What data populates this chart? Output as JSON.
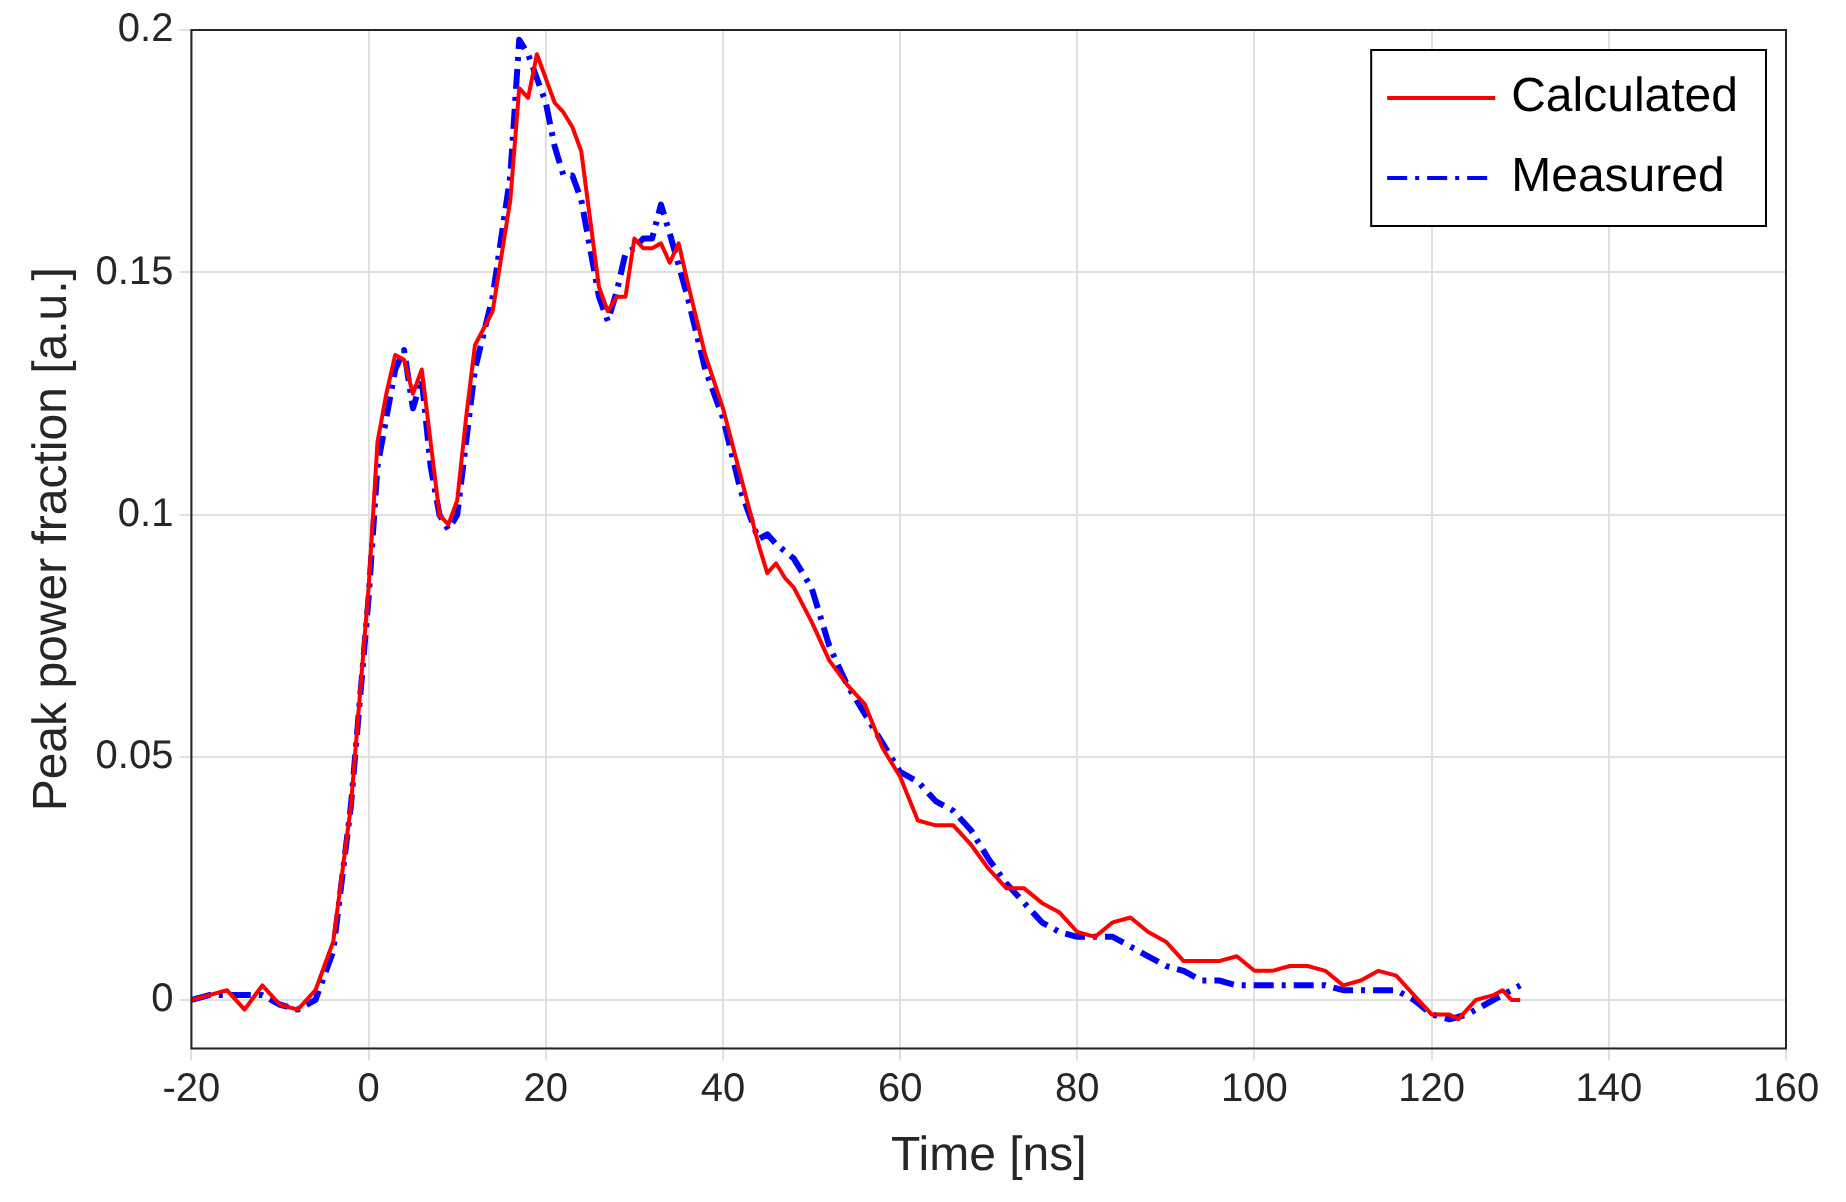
{
  "chart_data": {
    "type": "line",
    "xlabel": "Time [ns]",
    "ylabel": "Peak power fraction [a.u.]",
    "xlim": [
      -20,
      160
    ],
    "xticks": [
      -20,
      0,
      20,
      40,
      60,
      80,
      100,
      120,
      140,
      160
    ],
    "ylim": [
      -0.01,
      0.2
    ],
    "yticks": [
      0,
      0.05,
      0.1,
      0.15,
      0.2
    ],
    "grid": true,
    "legend": "top right",
    "marker": "none",
    "series": [
      {
        "name": "Calculated",
        "color": "#ff0000",
        "line_style": "solid",
        "x": [
          -20,
          -18,
          -16,
          -14,
          -12,
          -10,
          -8,
          -6,
          -4,
          -2,
          0,
          1,
          2,
          3,
          4,
          5,
          6,
          7,
          8,
          9,
          10,
          11,
          12,
          14,
          16,
          17,
          18,
          19,
          20,
          21,
          22,
          23,
          24,
          25,
          26,
          27,
          28,
          29,
          30,
          31,
          32,
          33,
          34,
          35,
          36,
          38,
          40,
          42,
          44,
          45,
          46,
          47,
          48,
          50,
          52,
          54,
          56,
          58,
          60,
          62,
          64,
          66,
          68,
          70,
          72,
          74,
          76,
          78,
          80,
          82,
          84,
          86,
          88,
          90,
          92,
          94,
          96,
          98,
          100,
          102,
          104,
          106,
          108,
          110,
          112,
          114,
          116,
          118,
          120,
          122,
          123,
          125,
          127,
          128,
          129,
          130
        ],
        "values": [
          0,
          0.001,
          0.002,
          -0.002,
          0.003,
          -0.001,
          -0.002,
          0.002,
          0.012,
          0.04,
          0.085,
          0.115,
          0.125,
          0.133,
          0.132,
          0.125,
          0.13,
          0.115,
          0.1,
          0.098,
          0.103,
          0.12,
          0.135,
          0.142,
          0.165,
          0.188,
          0.186,
          0.195,
          0.19,
          0.185,
          0.183,
          0.18,
          0.175,
          0.161,
          0.147,
          0.142,
          0.145,
          0.145,
          0.157,
          0.155,
          0.155,
          0.156,
          0.152,
          0.156,
          0.148,
          0.133,
          0.122,
          0.108,
          0.094,
          0.088,
          0.09,
          0.087,
          0.085,
          0.078,
          0.07,
          0.065,
          0.061,
          0.052,
          0.046,
          0.037,
          0.036,
          0.036,
          0.032,
          0.027,
          0.023,
          0.023,
          0.02,
          0.018,
          0.014,
          0.013,
          0.016,
          0.017,
          0.014,
          0.012,
          0.008,
          0.008,
          0.008,
          0.009,
          0.006,
          0.006,
          0.007,
          0.007,
          0.006,
          0.003,
          0.004,
          0.006,
          0.005,
          0.001,
          -0.003,
          -0.003,
          -0.004,
          0,
          0.001,
          0.002,
          0,
          0
        ]
      },
      {
        "name": "Measured",
        "color": "#0000ff",
        "line_style": "dashed",
        "x": [
          -20,
          -18,
          -14,
          -12,
          -10,
          -8,
          -6,
          -4,
          -2,
          0,
          1,
          2,
          3,
          4,
          5,
          6,
          7,
          8,
          9,
          10,
          11,
          12,
          14,
          16,
          17,
          18,
          19,
          20,
          21,
          22,
          23,
          24,
          25,
          26,
          27,
          28,
          29,
          30,
          31,
          32,
          33,
          34,
          36,
          38,
          40,
          42,
          43,
          44,
          45,
          46,
          48,
          50,
          52,
          54,
          56,
          58,
          60,
          62,
          64,
          66,
          68,
          70,
          72,
          74,
          76,
          78,
          80,
          82,
          84,
          86,
          88,
          90,
          92,
          94,
          96,
          98,
          100,
          102,
          104,
          106,
          108,
          110,
          112,
          114,
          116,
          118,
          120,
          122,
          124,
          126,
          128,
          130
        ],
        "values": [
          0,
          0.001,
          0.001,
          0.001,
          -0.001,
          -0.002,
          0,
          0.01,
          0.04,
          0.083,
          0.11,
          0.12,
          0.13,
          0.134,
          0.122,
          0.128,
          0.11,
          0.1,
          0.097,
          0.1,
          0.115,
          0.13,
          0.145,
          0.17,
          0.198,
          0.195,
          0.19,
          0.185,
          0.176,
          0.17,
          0.17,
          0.165,
          0.155,
          0.145,
          0.14,
          0.146,
          0.154,
          0.155,
          0.157,
          0.157,
          0.164,
          0.158,
          0.145,
          0.13,
          0.12,
          0.105,
          0.1,
          0.095,
          0.096,
          0.094,
          0.091,
          0.085,
          0.073,
          0.065,
          0.059,
          0.053,
          0.047,
          0.045,
          0.041,
          0.039,
          0.035,
          0.029,
          0.024,
          0.02,
          0.016,
          0.014,
          0.013,
          0.013,
          0.013,
          0.011,
          0.009,
          0.007,
          0.006,
          0.004,
          0.004,
          0.003,
          0.003,
          0.003,
          0.003,
          0.003,
          0.003,
          0.002,
          0.002,
          0.002,
          0.002,
          0,
          -0.003,
          -0.004,
          -0.003,
          -0.001,
          0.001,
          0.003
        ]
      }
    ]
  }
}
